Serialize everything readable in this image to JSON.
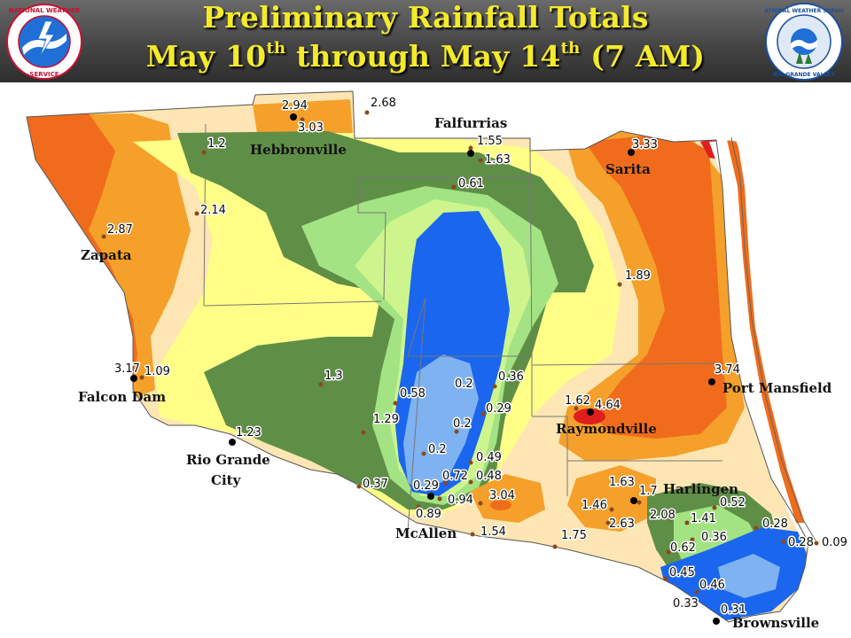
{
  "title": {
    "line1": "Preliminary Rainfall Totals",
    "line2_part1": "May 10",
    "line2_sup1": "th",
    "line2_part2": " through May 14",
    "line2_sup2": "th",
    "line2_part3": " (7 AM)"
  },
  "logos": {
    "left": {
      "icon": "nws-seal-icon",
      "ring_text": "NATIONAL WEATHER SERVICE"
    },
    "right": {
      "icon": "noaa-office-seal-icon",
      "ring_text": "NATIONAL WEATHER SERVICE · RIO GRANDE VALLEY"
    }
  },
  "colors": {
    "lt_1": "#5f8e47",
    "r_1_1_5": "#a3e383",
    "r_1_5_2": "#ffff88",
    "r_2_2_5": "#fde6b3",
    "r_2_5_3": "#f5a02a",
    "r_3_4": "#f06c1c",
    "r_4_5": "#e01e1e",
    "blue_dark": "#1a66ee",
    "blue_light": "#7fb2f0"
  },
  "cities": [
    {
      "name": "Hebbronville"
    },
    {
      "name": "Falfurrias"
    },
    {
      "name": "Sarita"
    },
    {
      "name": "Zapata"
    },
    {
      "name": "Falcon Dam"
    },
    {
      "name": "Port Mansfield"
    },
    {
      "name": "Raymondville"
    },
    {
      "name": "Rio Grande"
    },
    {
      "name": "City"
    },
    {
      "name": "Harlingen"
    },
    {
      "name": "McAllen"
    },
    {
      "name": "Brownsville"
    }
  ],
  "observations": [
    "2.94",
    "3.03",
    "2.68",
    "1.2",
    "1.55",
    "1.63",
    "3.33",
    "0.61",
    "2.14",
    "2.87",
    "1.89",
    "3.17",
    "1.09",
    "1.3",
    "0.58",
    "0.2",
    "0.36",
    "0.29",
    "3.74",
    "1.62",
    "4.64",
    "1.29",
    "0.2",
    "1.23",
    "0.2",
    "0.49",
    "0.72",
    "0.48",
    "0.37",
    "0.29",
    "1.63",
    "1.7",
    "0.94",
    "3.04",
    "1.46",
    "0.52",
    "0.89",
    "2.08",
    "1.41",
    "2.63",
    "0.28",
    "1.54",
    "1.75",
    "0.36",
    "0.62",
    "0.28",
    "0.09",
    "0.45",
    "0.46",
    "0.33",
    "0.31"
  ]
}
